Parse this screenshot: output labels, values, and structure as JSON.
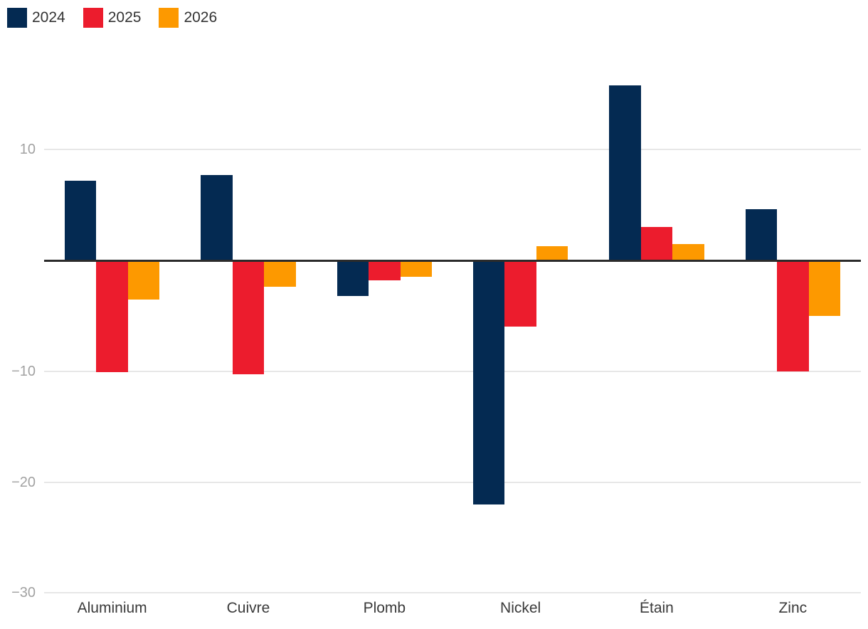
{
  "chart_data": {
    "type": "bar",
    "title": "",
    "xlabel": "",
    "ylabel": "",
    "categories": [
      "Aluminium",
      "Cuivre",
      "Plomb",
      "Nickel",
      "Étain",
      "Zinc"
    ],
    "series": [
      {
        "name": "2024",
        "color": "#042a52",
        "values": [
          7.2,
          7.7,
          -3.2,
          -22.0,
          15.8,
          4.6
        ]
      },
      {
        "name": "2025",
        "color": "#ec1c2d",
        "values": [
          -10.1,
          -10.3,
          -1.8,
          -6.0,
          3.0,
          -10.0
        ]
      },
      {
        "name": "2026",
        "color": "#fd9900",
        "values": [
          -3.5,
          -2.4,
          -1.5,
          1.3,
          1.5,
          -5.0
        ]
      }
    ],
    "yticks": [
      10,
      -10,
      -20,
      -30
    ],
    "ytick_labels": [
      "10",
      "−10",
      "−20",
      "−30"
    ],
    "ylim": [
      -30,
      17.5
    ],
    "grid": true,
    "legend_position": "top-left",
    "zero_axis": true
  },
  "colors": {
    "grid": "#e7e7e7",
    "zero_axis": "#2b2b2b",
    "y_tick_text": "#a2a2a2",
    "x_tick_text": "#3a3a3a",
    "legend_text": "#333333",
    "background": "#ffffff"
  }
}
